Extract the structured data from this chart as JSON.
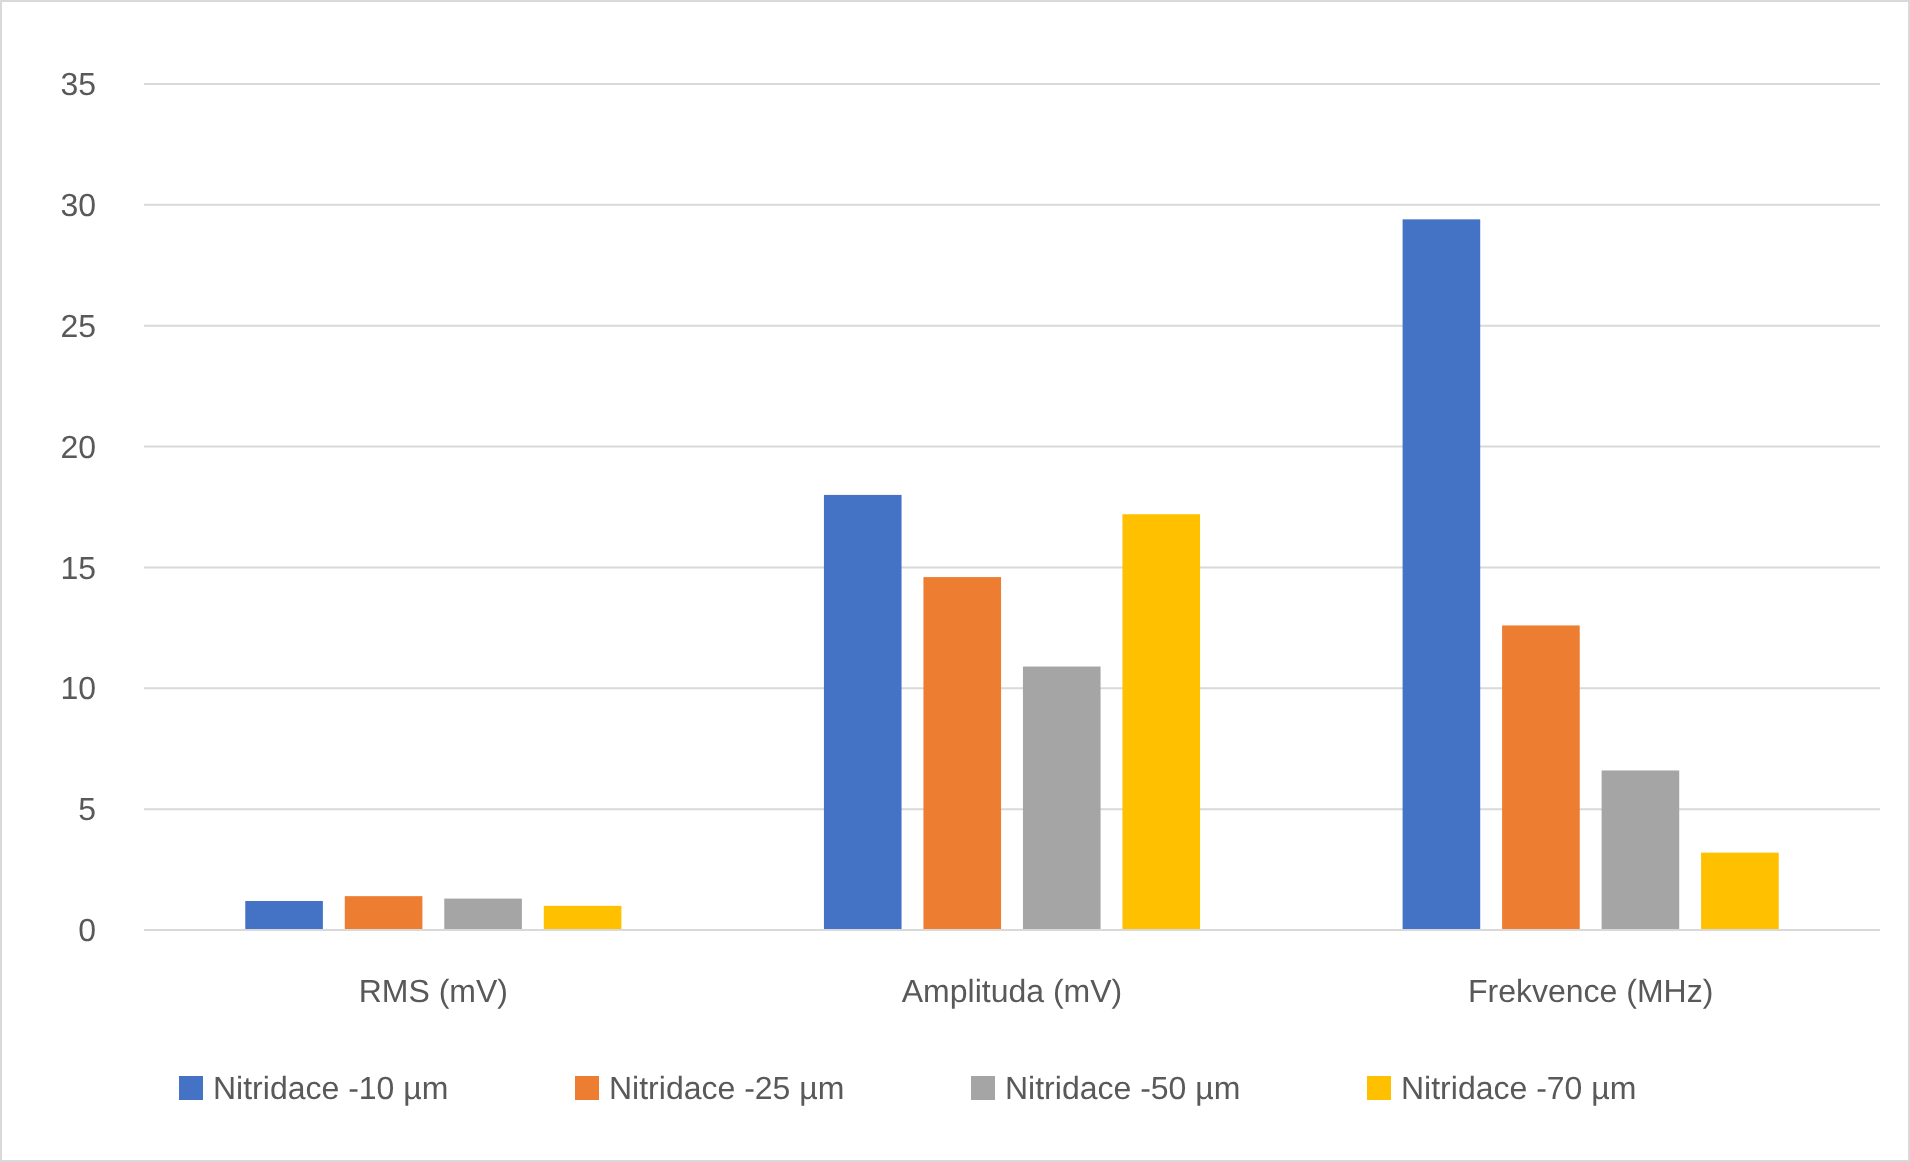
{
  "chart_data": {
    "type": "bar",
    "categories": [
      "RMS (mV)",
      "Amplituda (mV)",
      "Frekvence (MHz)"
    ],
    "series": [
      {
        "name": "Nitridace -10 µm",
        "color": "#4472c4",
        "values": [
          1.2,
          18,
          29.4
        ]
      },
      {
        "name": "Nitridace -25 µm",
        "color": "#ed7d31",
        "values": [
          1.4,
          14.6,
          12.6
        ]
      },
      {
        "name": "Nitridace -50 µm",
        "color": "#a5a5a5",
        "values": [
          1.3,
          10.9,
          6.6
        ]
      },
      {
        "name": "Nitridace -70 µm",
        "color": "#ffc000",
        "values": [
          1.0,
          17.2,
          3.2
        ]
      }
    ],
    "ylim": [
      0,
      35
    ],
    "yticks": [
      0,
      5,
      10,
      15,
      20,
      25,
      30,
      35
    ],
    "grid": "y",
    "legend": "bottom"
  }
}
